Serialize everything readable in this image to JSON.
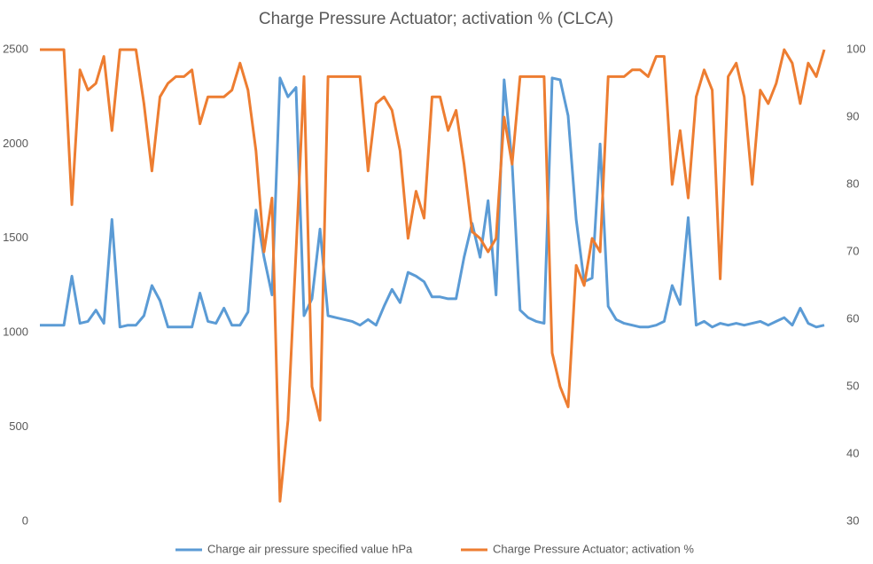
{
  "chart_data": {
    "type": "line",
    "title": "Charge Pressure Actuator; activation % (CLCA)",
    "ylim": [
      0,
      2500
    ],
    "yticks": [
      0,
      500,
      1000,
      1500,
      2000,
      2500
    ],
    "y2lim": [
      30,
      100
    ],
    "y2ticks": [
      30,
      40,
      50,
      60,
      70,
      80,
      90,
      100
    ],
    "grid": false,
    "legend": "bottom",
    "series": [
      {
        "name": "Charge air pressure specified value  hPa",
        "color": "#5b9bd5",
        "axis": "y",
        "values": [
          1040,
          1040,
          1040,
          1040,
          1300,
          1050,
          1060,
          1120,
          1050,
          1600,
          1030,
          1040,
          1040,
          1090,
          1250,
          1170,
          1030,
          1030,
          1030,
          1030,
          1210,
          1060,
          1050,
          1130,
          1040,
          1040,
          1110,
          1650,
          1400,
          1200,
          2350,
          2250,
          2300,
          1090,
          1180,
          1550,
          1090,
          1080,
          1070,
          1060,
          1040,
          1070,
          1040,
          1140,
          1230,
          1160,
          1320,
          1300,
          1270,
          1190,
          1190,
          1180,
          1180,
          1400,
          1580,
          1400,
          1700,
          1200,
          2340,
          1900,
          1120,
          1080,
          1060,
          1050,
          2350,
          2340,
          2150,
          1600,
          1270,
          1290,
          2000,
          1140,
          1070,
          1050,
          1040,
          1030,
          1030,
          1040,
          1060,
          1250,
          1150,
          1610,
          1040,
          1060,
          1030,
          1050,
          1040,
          1050,
          1040,
          1050,
          1060,
          1040,
          1060,
          1080,
          1040,
          1130,
          1050,
          1030,
          1040
        ]
      },
      {
        "name": "Charge Pressure Actuator; activation %",
        "color": "#ed7d31",
        "axis": "y2",
        "values": [
          100,
          100,
          100,
          100,
          77,
          97,
          94,
          95,
          99,
          88,
          100,
          100,
          100,
          92,
          82,
          93,
          95,
          96,
          96,
          97,
          89,
          93,
          93,
          93,
          94,
          98,
          94,
          85,
          70,
          78,
          33,
          45,
          70,
          96,
          50,
          45,
          96,
          96,
          96,
          96,
          96,
          82,
          92,
          93,
          91,
          85,
          72,
          79,
          75,
          93,
          93,
          88,
          91,
          83,
          73,
          72,
          70,
          72,
          90,
          83,
          96,
          96,
          96,
          96,
          55,
          50,
          47,
          68,
          65,
          72,
          70,
          96,
          96,
          96,
          97,
          97,
          96,
          99,
          99,
          80,
          88,
          78,
          93,
          97,
          94,
          66,
          96,
          98,
          93,
          80,
          94,
          92,
          95,
          100,
          98,
          92,
          98,
          96,
          100
        ]
      }
    ]
  }
}
